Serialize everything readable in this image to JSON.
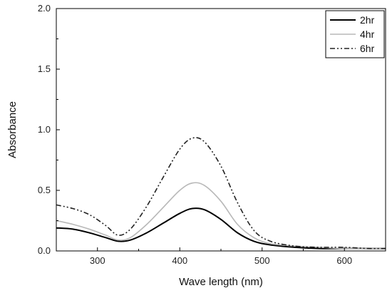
{
  "chart_data": {
    "type": "line",
    "title": "",
    "xlabel": "Wave length (nm)",
    "ylabel": "Absorbance",
    "xlim": [
      250,
      650
    ],
    "ylim": [
      0.0,
      2.0
    ],
    "x_ticks": [
      300,
      400,
      500,
      600
    ],
    "y_ticks": [
      "0.0",
      "0.5",
      "1.0",
      "1.5",
      "2.0"
    ],
    "grid": false,
    "legend_position": "top-right",
    "series": [
      {
        "name": "2hr",
        "color": "#000000",
        "style": "solid",
        "points": [
          [
            250,
            0.19
          ],
          [
            270,
            0.18
          ],
          [
            290,
            0.15
          ],
          [
            310,
            0.11
          ],
          [
            325,
            0.08
          ],
          [
            340,
            0.09
          ],
          [
            360,
            0.15
          ],
          [
            380,
            0.23
          ],
          [
            400,
            0.31
          ],
          [
            415,
            0.35
          ],
          [
            430,
            0.34
          ],
          [
            450,
            0.26
          ],
          [
            470,
            0.15
          ],
          [
            490,
            0.08
          ],
          [
            510,
            0.05
          ],
          [
            540,
            0.03
          ],
          [
            570,
            0.02
          ],
          [
            600,
            0.02
          ],
          [
            630,
            0.02
          ],
          [
            650,
            0.02
          ]
        ]
      },
      {
        "name": "4hr",
        "color": "#b8b8b8",
        "style": "solid",
        "points": [
          [
            250,
            0.25
          ],
          [
            270,
            0.22
          ],
          [
            290,
            0.18
          ],
          [
            310,
            0.13
          ],
          [
            325,
            0.09
          ],
          [
            340,
            0.11
          ],
          [
            360,
            0.22
          ],
          [
            380,
            0.36
          ],
          [
            400,
            0.5
          ],
          [
            415,
            0.56
          ],
          [
            430,
            0.54
          ],
          [
            450,
            0.41
          ],
          [
            470,
            0.22
          ],
          [
            490,
            0.11
          ],
          [
            510,
            0.06
          ],
          [
            540,
            0.04
          ],
          [
            570,
            0.03
          ],
          [
            600,
            0.02
          ],
          [
            630,
            0.02
          ],
          [
            650,
            0.02
          ]
        ]
      },
      {
        "name": "6hr",
        "color": "#222222",
        "style": "dashdotdot",
        "points": [
          [
            250,
            0.38
          ],
          [
            270,
            0.35
          ],
          [
            290,
            0.3
          ],
          [
            310,
            0.21
          ],
          [
            325,
            0.13
          ],
          [
            340,
            0.18
          ],
          [
            360,
            0.37
          ],
          [
            380,
            0.61
          ],
          [
            400,
            0.84
          ],
          [
            415,
            0.93
          ],
          [
            430,
            0.9
          ],
          [
            450,
            0.7
          ],
          [
            470,
            0.4
          ],
          [
            490,
            0.17
          ],
          [
            510,
            0.08
          ],
          [
            540,
            0.04
          ],
          [
            570,
            0.03
          ],
          [
            600,
            0.03
          ],
          [
            630,
            0.02
          ],
          [
            650,
            0.02
          ]
        ]
      }
    ]
  }
}
